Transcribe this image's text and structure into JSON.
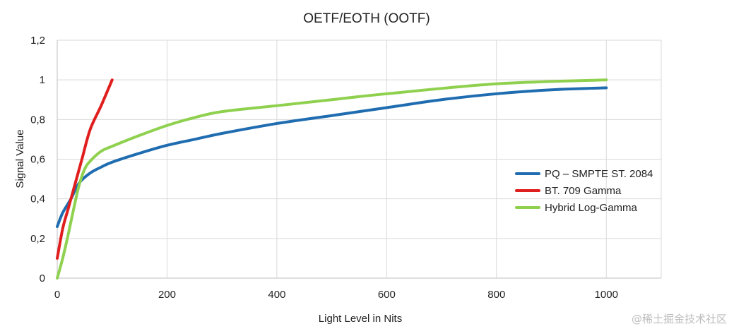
{
  "chart_data": {
    "type": "line",
    "title": "OETF/EOTH (OOTF)",
    "xlabel": "Light Level in Nits",
    "ylabel": "Signal Value",
    "xlim": [
      0,
      1100
    ],
    "ylim": [
      0,
      1.2
    ],
    "x_ticks": [
      {
        "value": 0,
        "label": "0"
      },
      {
        "value": 200,
        "label": "200"
      },
      {
        "value": 400,
        "label": "400"
      },
      {
        "value": 600,
        "label": "600"
      },
      {
        "value": 800,
        "label": "800"
      },
      {
        "value": 1000,
        "label": "1000"
      }
    ],
    "y_ticks": [
      {
        "value": 0,
        "label": "0"
      },
      {
        "value": 0.2,
        "label": "0,2"
      },
      {
        "value": 0.4,
        "label": "0,4"
      },
      {
        "value": 0.6,
        "label": "0,6"
      },
      {
        "value": 0.8,
        "label": "0,8"
      },
      {
        "value": 1.0,
        "label": "1"
      },
      {
        "value": 1.2,
        "label": "1,2"
      }
    ],
    "grid": true,
    "legend_position": "right",
    "series": [
      {
        "name": "PQ – SMPTE ST. 2084",
        "color": "#1f6db0",
        "points": [
          [
            0,
            0.26
          ],
          [
            10,
            0.33
          ],
          [
            25,
            0.4
          ],
          [
            40,
            0.48
          ],
          [
            60,
            0.53
          ],
          [
            80,
            0.56
          ],
          [
            100,
            0.585
          ],
          [
            150,
            0.63
          ],
          [
            200,
            0.67
          ],
          [
            250,
            0.7
          ],
          [
            300,
            0.73
          ],
          [
            400,
            0.78
          ],
          [
            500,
            0.82
          ],
          [
            600,
            0.86
          ],
          [
            700,
            0.9
          ],
          [
            800,
            0.93
          ],
          [
            900,
            0.95
          ],
          [
            1000,
            0.96
          ]
        ]
      },
      {
        "name": "BT. 709 Gamma",
        "color": "#e01e1e",
        "points": [
          [
            0,
            0.1
          ],
          [
            10,
            0.25
          ],
          [
            20,
            0.35
          ],
          [
            30,
            0.45
          ],
          [
            45,
            0.6
          ],
          [
            60,
            0.75
          ],
          [
            80,
            0.87
          ],
          [
            100,
            1.0
          ]
        ]
      },
      {
        "name": "Hybrid Log-Gamma",
        "color": "#8fd14f",
        "points": [
          [
            0,
            0
          ],
          [
            10,
            0.1
          ],
          [
            20,
            0.22
          ],
          [
            30,
            0.35
          ],
          [
            40,
            0.47
          ],
          [
            50,
            0.55
          ],
          [
            60,
            0.59
          ],
          [
            80,
            0.64
          ],
          [
            100,
            0.665
          ],
          [
            150,
            0.72
          ],
          [
            200,
            0.77
          ],
          [
            250,
            0.81
          ],
          [
            300,
            0.84
          ],
          [
            400,
            0.87
          ],
          [
            500,
            0.9
          ],
          [
            600,
            0.93
          ],
          [
            800,
            0.98
          ],
          [
            1000,
            1.0
          ]
        ]
      }
    ]
  },
  "watermark": "@稀土掘金技术社区"
}
